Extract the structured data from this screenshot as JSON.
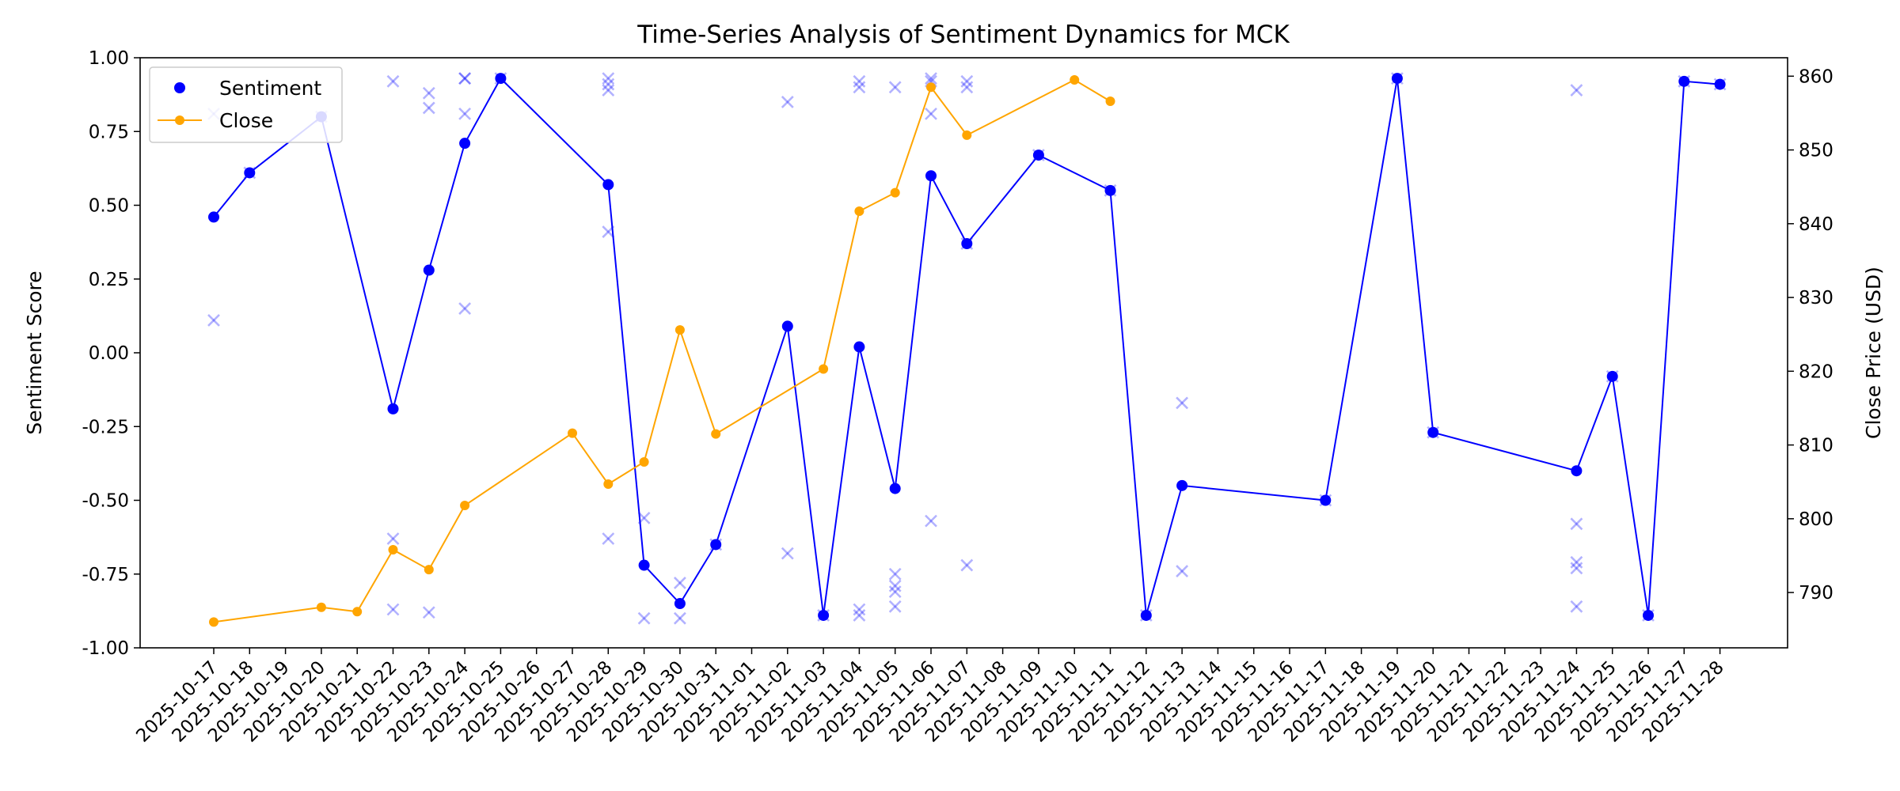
{
  "chart_data": {
    "type": "line",
    "title": "Time-Series Analysis of Sentiment Dynamics for MCK",
    "ylabel": "Sentiment Score",
    "y2label": "Close Price (USD)",
    "ylim": [
      -1.0,
      1.0
    ],
    "y2lim": [
      782.5,
      862.5
    ],
    "yticks": [
      "-1.00",
      "-0.75",
      "-0.50",
      "-0.25",
      "0.00",
      "0.25",
      "0.50",
      "0.75",
      "1.00"
    ],
    "y2ticks": [
      "790",
      "800",
      "810",
      "820",
      "830",
      "840",
      "850",
      "860"
    ],
    "grid": false,
    "legend_position": "upper-left",
    "dates": [
      "2025-10-17",
      "2025-10-18",
      "2025-10-19",
      "2025-10-20",
      "2025-10-21",
      "2025-10-22",
      "2025-10-23",
      "2025-10-24",
      "2025-10-25",
      "2025-10-26",
      "2025-10-27",
      "2025-10-28",
      "2025-10-29",
      "2025-10-30",
      "2025-10-31",
      "2025-11-01",
      "2025-11-02",
      "2025-11-03",
      "2025-11-04",
      "2025-11-05",
      "2025-11-06",
      "2025-11-07",
      "2025-11-08",
      "2025-11-09",
      "2025-11-10",
      "2025-11-11",
      "2025-11-12",
      "2025-11-13",
      "2025-11-14",
      "2025-11-15",
      "2025-11-16",
      "2025-11-17",
      "2025-11-18",
      "2025-11-19",
      "2025-11-20",
      "2025-11-21",
      "2025-11-22",
      "2025-11-23",
      "2025-11-24",
      "2025-11-25",
      "2025-11-26",
      "2025-11-27",
      "2025-11-28"
    ],
    "series": [
      {
        "name": "Sentiment",
        "axis": "left",
        "color": "#0000ff",
        "points": [
          [
            "2025-10-17",
            0.46
          ],
          [
            "2025-10-18",
            0.61
          ],
          [
            "2025-10-20",
            0.8
          ],
          [
            "2025-10-22",
            -0.19
          ],
          [
            "2025-10-23",
            0.28
          ],
          [
            "2025-10-24",
            0.71
          ],
          [
            "2025-10-25",
            0.93
          ],
          [
            "2025-10-28",
            0.57
          ],
          [
            "2025-10-29",
            -0.72
          ],
          [
            "2025-10-30",
            -0.85
          ],
          [
            "2025-10-31",
            -0.65
          ],
          [
            "2025-11-02",
            0.09
          ],
          [
            "2025-11-03",
            -0.89
          ],
          [
            "2025-11-04",
            0.02
          ],
          [
            "2025-11-05",
            -0.46
          ],
          [
            "2025-11-06",
            0.6
          ],
          [
            "2025-11-07",
            0.37
          ],
          [
            "2025-11-09",
            0.67
          ],
          [
            "2025-11-11",
            0.55
          ],
          [
            "2025-11-12",
            -0.89
          ],
          [
            "2025-11-13",
            -0.45
          ],
          [
            "2025-11-17",
            -0.5
          ],
          [
            "2025-11-19",
            0.93
          ],
          [
            "2025-11-20",
            -0.27
          ],
          [
            "2025-11-24",
            -0.4
          ],
          [
            "2025-11-25",
            -0.08
          ],
          [
            "2025-11-26",
            -0.89
          ],
          [
            "2025-11-27",
            0.92
          ],
          [
            "2025-11-28",
            0.91
          ]
        ]
      },
      {
        "name": "Close",
        "axis": "right",
        "color": "#ffa500",
        "points": [
          [
            "2025-10-17",
            786.0
          ],
          [
            "2025-10-20",
            788.0
          ],
          [
            "2025-10-21",
            787.4
          ],
          [
            "2025-10-22",
            795.8
          ],
          [
            "2025-10-23",
            793.1
          ],
          [
            "2025-10-24",
            801.8
          ],
          [
            "2025-10-27",
            811.6
          ],
          [
            "2025-10-28",
            804.7
          ],
          [
            "2025-10-29",
            807.7
          ],
          [
            "2025-10-30",
            825.6
          ],
          [
            "2025-10-31",
            811.5
          ],
          [
            "2025-11-03",
            820.3
          ],
          [
            "2025-11-04",
            841.7
          ],
          [
            "2025-11-05",
            844.2
          ],
          [
            "2025-11-06",
            858.5
          ],
          [
            "2025-11-07",
            852.0
          ],
          [
            "2025-11-10",
            859.5
          ],
          [
            "2025-11-11",
            856.6
          ]
        ]
      }
    ],
    "individual_scores": {
      "marker": "x",
      "color": "#0000ff",
      "alpha": 0.3,
      "points": [
        [
          "2025-10-17",
          0.81
        ],
        [
          "2025-10-17",
          0.11
        ],
        [
          "2025-10-18",
          0.61
        ],
        [
          "2025-10-20",
          0.8
        ],
        [
          "2025-10-22",
          0.92
        ],
        [
          "2025-10-22",
          -0.63
        ],
        [
          "2025-10-22",
          -0.87
        ],
        [
          "2025-10-23",
          0.88
        ],
        [
          "2025-10-23",
          0.83
        ],
        [
          "2025-10-23",
          -0.88
        ],
        [
          "2025-10-24",
          0.93
        ],
        [
          "2025-10-24",
          0.93
        ],
        [
          "2025-10-24",
          0.81
        ],
        [
          "2025-10-24",
          0.15
        ],
        [
          "2025-10-25",
          0.93
        ],
        [
          "2025-10-28",
          0.93
        ],
        [
          "2025-10-28",
          0.91
        ],
        [
          "2025-10-28",
          0.89
        ],
        [
          "2025-10-28",
          0.41
        ],
        [
          "2025-10-28",
          -0.63
        ],
        [
          "2025-10-29",
          -0.56
        ],
        [
          "2025-10-29",
          -0.9
        ],
        [
          "2025-10-30",
          -0.78
        ],
        [
          "2025-10-30",
          -0.9
        ],
        [
          "2025-10-31",
          -0.65
        ],
        [
          "2025-11-02",
          0.85
        ],
        [
          "2025-11-02",
          -0.68
        ],
        [
          "2025-11-03",
          -0.89
        ],
        [
          "2025-11-04",
          0.92
        ],
        [
          "2025-11-04",
          0.9
        ],
        [
          "2025-11-04",
          -0.87
        ],
        [
          "2025-11-04",
          -0.89
        ],
        [
          "2025-11-05",
          0.9
        ],
        [
          "2025-11-05",
          -0.75
        ],
        [
          "2025-11-05",
          -0.79
        ],
        [
          "2025-11-05",
          -0.81
        ],
        [
          "2025-11-05",
          -0.86
        ],
        [
          "2025-11-06",
          0.93
        ],
        [
          "2025-11-06",
          0.92
        ],
        [
          "2025-11-06",
          0.81
        ],
        [
          "2025-11-06",
          -0.57
        ],
        [
          "2025-11-07",
          0.92
        ],
        [
          "2025-11-07",
          0.9
        ],
        [
          "2025-11-07",
          0.37
        ],
        [
          "2025-11-07",
          -0.72
        ],
        [
          "2025-11-09",
          0.67
        ],
        [
          "2025-11-11",
          0.55
        ],
        [
          "2025-11-12",
          -0.89
        ],
        [
          "2025-11-13",
          -0.17
        ],
        [
          "2025-11-13",
          -0.74
        ],
        [
          "2025-11-17",
          -0.5
        ],
        [
          "2025-11-19",
          0.93
        ],
        [
          "2025-11-20",
          -0.27
        ],
        [
          "2025-11-24",
          0.89
        ],
        [
          "2025-11-24",
          -0.58
        ],
        [
          "2025-11-24",
          -0.71
        ],
        [
          "2025-11-24",
          -0.73
        ],
        [
          "2025-11-24",
          -0.86
        ],
        [
          "2025-11-25",
          -0.08
        ],
        [
          "2025-11-26",
          -0.89
        ],
        [
          "2025-11-27",
          0.92
        ],
        [
          "2025-11-28",
          0.91
        ]
      ]
    }
  }
}
